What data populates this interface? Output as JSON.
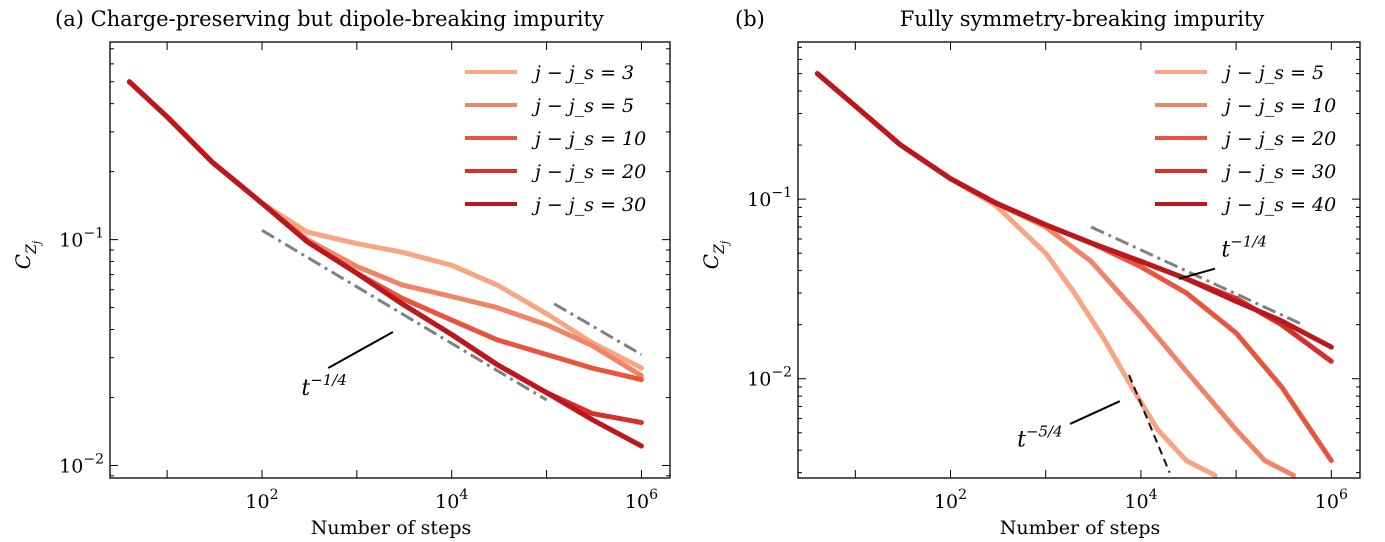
{
  "chart_data": [
    {
      "type": "line",
      "title": "(a) Charge-preserving but dipole-breaking impurity",
      "xlabel": "Number of steps",
      "ylabel": "C_{Z_j}",
      "xscale": "log",
      "yscale": "log",
      "xlim": [
        2.5,
        2000000
      ],
      "ylim": [
        0.0088,
        0.75
      ],
      "xticks": [
        {
          "value": 100,
          "base": "10",
          "exp": "2"
        },
        {
          "value": 10000,
          "base": "10",
          "exp": "4"
        },
        {
          "value": 1000000,
          "base": "10",
          "exp": "6"
        }
      ],
      "yticks": [
        {
          "value": 0.1,
          "base": "10",
          "exp": "−1"
        },
        {
          "value": 0.01,
          "base": "10",
          "exp": "−2"
        }
      ],
      "legend_position": "top-right",
      "series": [
        {
          "name": "j − j_s = 3",
          "label": "j − j_s = 3",
          "color": "#f7a582",
          "x": [
            4,
            10,
            30,
            100,
            300,
            1000,
            3000,
            10000,
            30000,
            100000,
            300000,
            1000000
          ],
          "values": [
            0.5,
            0.35,
            0.22,
            0.145,
            0.108,
            0.096,
            0.088,
            0.077,
            0.063,
            0.047,
            0.035,
            0.027
          ]
        },
        {
          "name": "j − j_s = 5",
          "label": "j − j_s = 5",
          "color": "#f08466",
          "x": [
            4,
            10,
            30,
            100,
            300,
            1000,
            3000,
            10000,
            30000,
            100000,
            300000,
            1000000
          ],
          "values": [
            0.5,
            0.35,
            0.22,
            0.145,
            0.1,
            0.076,
            0.063,
            0.056,
            0.05,
            0.042,
            0.034,
            0.025
          ]
        },
        {
          "name": "j − j_s = 10",
          "label": "j − j_s = 10",
          "color": "#e8553d",
          "x": [
            4,
            10,
            30,
            100,
            300,
            1000,
            3000,
            10000,
            30000,
            100000,
            300000,
            1000000
          ],
          "values": [
            0.5,
            0.35,
            0.22,
            0.145,
            0.098,
            0.071,
            0.055,
            0.044,
            0.036,
            0.031,
            0.027,
            0.024
          ]
        },
        {
          "name": "j − j_s = 20",
          "label": "j − j_s = 20",
          "color": "#d6302b",
          "x": [
            4,
            10,
            30,
            100,
            300,
            1000,
            3000,
            10000,
            30000,
            100000,
            300000,
            1000000
          ],
          "values": [
            0.5,
            0.35,
            0.22,
            0.145,
            0.098,
            0.071,
            0.052,
            0.038,
            0.028,
            0.021,
            0.017,
            0.0155
          ]
        },
        {
          "name": "j − j_s = 30",
          "label": "j − j_s = 30",
          "color": "#bb171c",
          "x": [
            4,
            10,
            30,
            100,
            300,
            1000,
            3000,
            10000,
            30000,
            100000,
            300000,
            1000000
          ],
          "values": [
            0.5,
            0.35,
            0.22,
            0.145,
            0.098,
            0.071,
            0.052,
            0.038,
            0.028,
            0.021,
            0.016,
            0.0122
          ]
        }
      ],
      "guides": [
        {
          "style": "dashdot",
          "x": [
            100,
            100000
          ],
          "values": [
            0.11,
            0.0195
          ]
        },
        {
          "style": "dashdot",
          "x": [
            120000,
            1000000
          ],
          "values": [
            0.052,
            0.031
          ]
        }
      ],
      "annotations": [
        {
          "base": "t",
          "exp": "−1/4",
          "text_x": 260,
          "text_y": 0.0205,
          "line_from": [
            500,
            0.027
          ],
          "line_to": [
            2400,
            0.039
          ]
        }
      ]
    },
    {
      "type": "line",
      "title": "(b)",
      "subtitle": "Fully symmetry-breaking impurity",
      "xlabel": "Number of steps",
      "ylabel": "C_{Z_j}",
      "xscale": "log",
      "yscale": "log",
      "xlim": [
        2.5,
        2000000
      ],
      "ylim": [
        0.0028,
        0.75
      ],
      "xticks": [
        {
          "value": 100,
          "base": "10",
          "exp": "2"
        },
        {
          "value": 10000,
          "base": "10",
          "exp": "4"
        },
        {
          "value": 1000000,
          "base": "10",
          "exp": "6"
        }
      ],
      "yticks": [
        {
          "value": 0.1,
          "base": "10",
          "exp": "−1"
        },
        {
          "value": 0.01,
          "base": "10",
          "exp": "−2"
        }
      ],
      "legend_position": "top-right",
      "series": [
        {
          "name": "j − j_s = 5",
          "label": "j − j_s = 5",
          "color": "#f7a582",
          "x": [
            4,
            10,
            30,
            100,
            300,
            1000,
            2000,
            4000,
            8000,
            15000,
            30000,
            60000
          ],
          "values": [
            0.5,
            0.33,
            0.2,
            0.13,
            0.092,
            0.05,
            0.03,
            0.017,
            0.009,
            0.0052,
            0.0035,
            0.0029
          ]
        },
        {
          "name": "j − j_s = 10",
          "label": "j − j_s = 10",
          "color": "#f08466",
          "x": [
            4,
            10,
            30,
            100,
            300,
            1000,
            3000,
            10000,
            30000,
            100000,
            200000,
            400000
          ],
          "values": [
            0.5,
            0.33,
            0.2,
            0.13,
            0.095,
            0.07,
            0.045,
            0.022,
            0.011,
            0.0052,
            0.0035,
            0.0029
          ]
        },
        {
          "name": "j − j_s = 20",
          "label": "j − j_s = 20",
          "color": "#e8553d",
          "x": [
            4,
            10,
            30,
            100,
            300,
            1000,
            3000,
            10000,
            30000,
            100000,
            300000,
            1000000
          ],
          "values": [
            0.5,
            0.33,
            0.2,
            0.13,
            0.095,
            0.072,
            0.057,
            0.042,
            0.03,
            0.018,
            0.009,
            0.0035
          ]
        },
        {
          "name": "j − j_s = 30",
          "label": "j − j_s = 30",
          "color": "#d6302b",
          "x": [
            4,
            10,
            30,
            100,
            300,
            1000,
            3000,
            10000,
            30000,
            100000,
            300000,
            1000000
          ],
          "values": [
            0.5,
            0.33,
            0.2,
            0.13,
            0.095,
            0.072,
            0.057,
            0.045,
            0.036,
            0.028,
            0.02,
            0.0125
          ]
        },
        {
          "name": "j − j_s = 40",
          "label": "j − j_s = 40",
          "color": "#bb171c",
          "x": [
            4,
            10,
            30,
            100,
            300,
            1000,
            3000,
            10000,
            30000,
            100000,
            300000,
            1000000
          ],
          "values": [
            0.5,
            0.33,
            0.2,
            0.13,
            0.095,
            0.072,
            0.057,
            0.045,
            0.036,
            0.027,
            0.021,
            0.015
          ]
        }
      ],
      "guides": [
        {
          "style": "dashdot",
          "x": [
            3000,
            500000
          ],
          "values": [
            0.07,
            0.02
          ]
        },
        {
          "style": "dashed",
          "x": [
            7500,
            20000
          ],
          "values": [
            0.0105,
            0.003
          ]
        }
      ],
      "annotations": [
        {
          "base": "t",
          "exp": "−1/4",
          "text_x": 70000,
          "text_y": 0.048,
          "line_from": [
            25000,
            0.036
          ],
          "line_to": [
            60000,
            0.041
          ]
        },
        {
          "base": "t",
          "exp": "−5/4",
          "text_x": 500,
          "text_y": 0.0042,
          "line_from": [
            1800,
            0.0056
          ],
          "line_to": [
            6000,
            0.0075
          ]
        }
      ]
    }
  ]
}
